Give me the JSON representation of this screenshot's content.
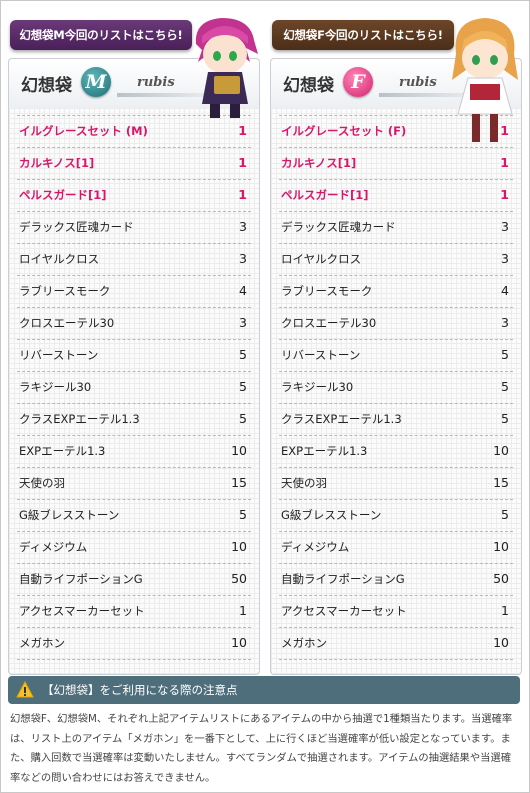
{
  "bags": [
    {
      "tab_label": "幻想袋M今回のリストはこちら!",
      "title": "幻想袋",
      "letter": "M",
      "brand": "rubis",
      "items": [
        {
          "name": "イルグレースセット (M)",
          "qty": "1",
          "highlight": true
        },
        {
          "name": "カルキノス[1]",
          "qty": "1",
          "highlight": true
        },
        {
          "name": "ペルスガード[1]",
          "qty": "1",
          "highlight": true
        },
        {
          "name": "デラックス匠魂カード",
          "qty": "3",
          "highlight": false
        },
        {
          "name": "ロイヤルクロス",
          "qty": "3",
          "highlight": false
        },
        {
          "name": "ラブリースモーク",
          "qty": "4",
          "highlight": false
        },
        {
          "name": "クロスエーテル30",
          "qty": "3",
          "highlight": false
        },
        {
          "name": "リバーストーン",
          "qty": "5",
          "highlight": false
        },
        {
          "name": "ラキジール30",
          "qty": "5",
          "highlight": false
        },
        {
          "name": "クラスEXPエーテル1.3",
          "qty": "5",
          "highlight": false
        },
        {
          "name": "EXPエーテル1.3",
          "qty": "10",
          "highlight": false
        },
        {
          "name": "天使の羽",
          "qty": "15",
          "highlight": false
        },
        {
          "name": "G級ブレスストーン",
          "qty": "5",
          "highlight": false
        },
        {
          "name": "ディメジウム",
          "qty": "10",
          "highlight": false
        },
        {
          "name": "自動ライフポーションG",
          "qty": "50",
          "highlight": false
        },
        {
          "name": "アクセスマーカーセット",
          "qty": "1",
          "highlight": false
        },
        {
          "name": "メガホン",
          "qty": "10",
          "highlight": false
        }
      ]
    },
    {
      "tab_label": "幻想袋F今回のリストはこちら!",
      "title": "幻想袋",
      "letter": "F",
      "brand": "rubis",
      "items": [
        {
          "name": "イルグレースセット (F)",
          "qty": "1",
          "highlight": true
        },
        {
          "name": "カルキノス[1]",
          "qty": "1",
          "highlight": true
        },
        {
          "name": "ペルスガード[1]",
          "qty": "1",
          "highlight": true
        },
        {
          "name": "デラックス匠魂カード",
          "qty": "3",
          "highlight": false
        },
        {
          "name": "ロイヤルクロス",
          "qty": "3",
          "highlight": false
        },
        {
          "name": "ラブリースモーク",
          "qty": "4",
          "highlight": false
        },
        {
          "name": "クロスエーテル30",
          "qty": "3",
          "highlight": false
        },
        {
          "name": "リバーストーン",
          "qty": "5",
          "highlight": false
        },
        {
          "name": "ラキジール30",
          "qty": "5",
          "highlight": false
        },
        {
          "name": "クラスEXPエーテル1.3",
          "qty": "5",
          "highlight": false
        },
        {
          "name": "EXPエーテル1.3",
          "qty": "10",
          "highlight": false
        },
        {
          "name": "天使の羽",
          "qty": "15",
          "highlight": false
        },
        {
          "name": "G級ブレスストーン",
          "qty": "5",
          "highlight": false
        },
        {
          "name": "ディメジウム",
          "qty": "10",
          "highlight": false
        },
        {
          "name": "自動ライフポーションG",
          "qty": "50",
          "highlight": false
        },
        {
          "name": "アクセスマーカーセット",
          "qty": "1",
          "highlight": false
        },
        {
          "name": "メガホン",
          "qty": "10",
          "highlight": false
        }
      ]
    }
  ],
  "notice": {
    "icon": "warning-icon",
    "title": "【幻想袋】をご利用になる際の注意点",
    "body": "幻想袋F、幻想袋M、それぞれ上記アイテムリストにあるアイテムの中から抽選で1種類当たります。当選確率は、リスト上のアイテム「メガホン」を一番下として、上に行くほど当選確率が低い設定となっています。また、購入回数で当選確率は変動いたしません。すべてランダムで抽選されます。アイテムの抽選結果や当選確率などの問い合わせにはお答えできません。"
  },
  "colors": {
    "highlight": "#d8176b",
    "tab_m": "#5a2c68",
    "tab_f": "#5c3a21",
    "notice_bar": "#4f6e7c"
  }
}
